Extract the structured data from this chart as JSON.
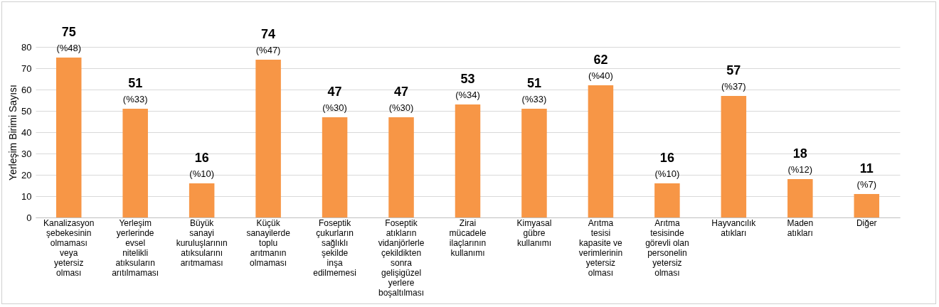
{
  "chart_data": {
    "type": "bar",
    "ylabel": "Yerleşim Birimi Sayısı",
    "categories": [
      "Kanalizasyon\nşebekesinin\nolmaması\nveya\nyetersiz\nolması",
      "Yerleşim\nyerlerinde\nevsel\nnitelikli\natıksuların\narıtılmaması",
      "Büyük\nsanayi\nkuruluşlarının\natıksularını\narıtmaması",
      "Küçük\nsanayilerde\ntoplu\narıtmanın\nolmaması",
      "Foseptik\nçukurların\nsağlıklı\nşekilde\ninşa\nedilmemesi",
      "Foseptik\natıkların\nvidanjörlerle\nçekildikten\nsonra\ngelişigüzel\nyerlere\nboşaltılması",
      "Zirai\nmücadele\nilaçlarının\nkullanımı",
      "Kimyasal\ngübre\nkullanımı",
      "Arıtma\ntesisi\nkapasite ve\nverimlerinin\nyetersiz\nolması",
      "Arıtma\ntesisinde\ngörevli olan\npersonelin\nyetersiz\nolması",
      "Hayvancılık\natıkları",
      "Maden\natıkları",
      "Diğer"
    ],
    "values": [
      75,
      51,
      16,
      74,
      47,
      47,
      53,
      51,
      62,
      16,
      57,
      18,
      11
    ],
    "color": "#f79646",
    "data_labels": true,
    "annotations": [
      {
        "text": "(%48)",
        "x": "Kanalizasyon\nşebekesinin\nolmaması\nveya\nyetersiz\nolması",
        "y": 75
      },
      {
        "text": "(%33)",
        "x": "Yerleşim\nyerlerinde\nevsel\nnitelikli\natıksuların\narıtılmaması",
        "y": 51
      },
      {
        "text": "(%10)",
        "x": "Büyük\nsanayi\nkuruluşlarının\natıksularını\narıtmaması",
        "y": 16
      },
      {
        "text": "(%47)",
        "x": "Küçük\nsanayilerde\ntoplu\narıtmanın\nolmaması",
        "y": 74
      },
      {
        "text": "(%30)",
        "x": "Foseptik\nçukurların\nsağlıklı\nşekilde\ninşa\nedilmemesi",
        "y": 47
      },
      {
        "text": "(%30)",
        "x": "Foseptik\natıkların\nvidanjörlerle\nçekildikten\nsonra\ngelişigüzel\nyerlere\nboşaltılması",
        "y": 47
      },
      {
        "text": "(%34)",
        "x": "Zirai\nmücadele\nilaçlarının\nkullanımı",
        "y": 53
      },
      {
        "text": "(%33)",
        "x": "Kimyasal\ngübre\nkullanımı",
        "y": 51
      },
      {
        "text": "(%40)",
        "x": "Arıtma\ntesisi\nkapasite ve\nverimlerinin\nyetersiz\nolması",
        "y": 62
      },
      {
        "text": "(%10)",
        "x": "Arıtma\ntesisinde\ngörevli olan\npersonelin\nyetersiz\nolması",
        "y": 16
      },
      {
        "text": "(%37)",
        "x": "Hayvancılık\natıkları",
        "y": 57
      },
      {
        "text": "(%12)",
        "x": "Maden\natıkları",
        "y": 18
      },
      {
        "text": "(%7)",
        "x": "Diğer",
        "y": 11
      }
    ],
    "ylim": [
      0,
      80
    ],
    "yticks": [
      0,
      10,
      20,
      30,
      40,
      50,
      60,
      70,
      80
    ],
    "grid": "y"
  }
}
